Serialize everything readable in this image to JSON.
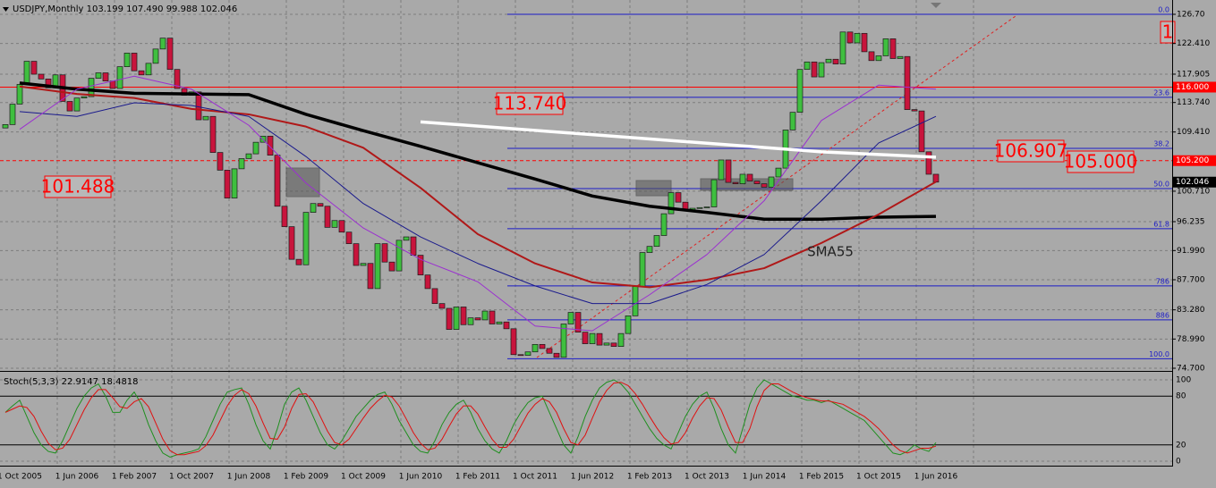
{
  "chart_data": [
    {
      "type": "candlestick",
      "title": "USDJPY,Monthly  103.199 107.490 99.988 102.046",
      "categories": [
        null,
        null,
        "1 Oct 2005",
        null,
        null,
        null,
        null,
        null,
        null,
        null,
        "1 Jun 2006",
        null,
        null,
        null,
        null,
        null,
        null,
        null,
        "1 Feb 2007",
        null,
        null,
        null,
        null,
        null,
        null,
        null,
        "1 Oct 2007",
        null,
        null,
        null,
        null,
        null,
        null,
        null,
        "1 Jun 2008",
        null,
        null,
        null,
        null,
        null,
        null,
        null,
        "1 Feb 2009",
        null,
        null,
        null,
        null,
        null,
        null,
        null,
        "1 Oct 2009",
        null,
        null,
        null,
        null,
        null,
        null,
        null,
        "1 Jun 2010",
        null,
        null,
        null,
        null,
        null,
        null,
        null,
        "1 Feb 2011",
        null,
        null,
        null,
        null,
        null,
        null,
        null,
        "1 Oct 2011",
        null,
        null,
        null,
        null,
        null,
        null,
        null,
        "1 Jun 2012",
        null,
        null,
        null,
        null,
        null,
        null,
        null,
        "1 Feb 2013",
        null,
        null,
        null,
        null,
        null,
        null,
        null,
        "1 Oct 2013",
        null,
        null,
        null,
        null,
        null,
        null,
        null,
        "1 Jun 2014",
        null,
        null,
        null,
        null,
        null,
        null,
        null,
        "1 Feb 2015",
        null,
        null,
        null,
        null,
        null,
        null,
        null,
        "1 Oct 2015",
        null,
        null,
        null,
        null,
        null,
        null,
        null,
        "1 Jun 2016"
      ],
      "open": [
        110.0,
        110.5,
        113.5,
        116.4,
        119.8,
        117.9,
        117.2,
        115.9,
        117.8,
        113.9,
        112.5,
        114.4,
        114.6,
        117.3,
        118.1,
        116.9,
        115.8,
        119.0,
        121.0,
        118.4,
        117.8,
        119.5,
        121.6,
        123.2,
        118.6,
        115.8,
        114.8,
        115.3,
        111.2,
        111.7,
        106.4,
        103.8,
        99.7,
        104.0,
        105.5,
        106.2,
        107.9,
        108.8,
        106.0,
        98.5,
        95.5,
        90.7,
        89.9,
        97.6,
        98.9,
        98.5,
        95.4,
        96.4,
        94.7,
        93.0,
        89.8,
        90.1,
        86.4,
        93.0,
        90.3,
        89.0,
        93.5,
        94.0,
        91.3,
        88.4,
        86.4,
        84.2,
        83.5,
        80.4,
        83.7,
        81.1,
        82.1,
        81.8,
        83.1,
        81.2,
        81.5,
        80.5,
        76.7,
        76.6,
        77.1,
        78.2,
        77.6,
        76.9,
        76.3,
        81.2,
        82.9,
        80.0,
        78.3,
        79.8,
        78.1,
        78.4,
        77.9,
        79.8,
        82.4,
        86.7,
        91.7,
        92.6,
        94.2,
        97.4,
        100.5,
        99.1,
        97.9,
        98.2,
        98.3,
        98.4,
        102.4,
        105.3,
        102.0,
        101.8,
        103.2,
        102.2,
        101.8,
        101.3,
        102.8,
        104.1,
        109.7,
        112.3,
        118.6,
        119.7,
        117.5,
        119.6,
        120.1,
        119.4,
        124.1,
        122.5,
        123.9,
        121.2,
        119.9,
        120.6,
        123.1,
        120.2,
        120.5,
        112.7,
        112.5,
        106.5,
        103.199
      ],
      "close": [
        110.5,
        113.5,
        116.4,
        119.8,
        117.9,
        117.2,
        115.9,
        117.8,
        113.9,
        112.5,
        114.4,
        114.6,
        117.3,
        118.1,
        116.9,
        115.8,
        119.0,
        121.0,
        118.4,
        117.8,
        119.5,
        121.6,
        123.2,
        118.6,
        115.8,
        114.8,
        115.3,
        111.2,
        111.7,
        106.4,
        103.8,
        99.7,
        104.0,
        105.5,
        106.2,
        107.9,
        108.8,
        106.0,
        98.5,
        95.5,
        90.7,
        89.9,
        97.6,
        98.9,
        98.5,
        95.4,
        96.4,
        94.7,
        93.0,
        89.8,
        90.1,
        86.4,
        93.0,
        90.3,
        89.0,
        93.5,
        94.0,
        91.3,
        88.4,
        86.4,
        84.2,
        83.5,
        80.4,
        83.7,
        81.1,
        82.1,
        81.8,
        83.1,
        81.2,
        81.5,
        80.5,
        76.7,
        76.6,
        77.1,
        78.2,
        77.6,
        76.9,
        76.3,
        81.2,
        82.9,
        80.0,
        78.3,
        79.8,
        78.1,
        78.4,
        77.9,
        79.8,
        82.4,
        86.7,
        91.7,
        92.6,
        94.2,
        97.4,
        100.5,
        99.1,
        97.9,
        98.2,
        98.3,
        98.4,
        102.4,
        105.3,
        102.0,
        101.8,
        103.2,
        102.2,
        101.8,
        101.3,
        102.8,
        104.1,
        109.7,
        112.3,
        118.6,
        119.7,
        117.5,
        119.6,
        120.1,
        119.4,
        124.1,
        122.5,
        123.9,
        121.2,
        119.9,
        120.6,
        123.1,
        120.2,
        120.5,
        112.7,
        112.5,
        106.5,
        103.2,
        102.046
      ],
      "up_color": "#3fbf3f",
      "down_color": "#c8143c",
      "ylim": [
        74.7,
        126.7
      ],
      "yticks": [
        {
          "value": 126.7,
          "label": "126.70"
        },
        {
          "value": 122.41,
          "label": "122.410"
        },
        117.905,
        {
          "value": 113.74,
          "label": "113.740"
        },
        {
          "value": 109.41,
          "label": "109.410"
        },
        {
          "value": 100.71,
          "label": "100.710"
        },
        96.235,
        {
          "value": 91.99,
          "label": "91.990"
        },
        {
          "value": 87.7,
          "label": "87.700"
        },
        {
          "value": 83.28,
          "label": "83.280"
        },
        {
          "value": 78.99,
          "label": "78.990"
        },
        {
          "value": 74.7,
          "label": "74.700"
        }
      ],
      "grid": true,
      "series": [
        {
          "color": "#000000",
          "width": 3.5,
          "x": [
            "1 Oct 2005",
            "1 Jun 2006",
            "1 Feb 2007",
            "1 Oct 2007",
            "1 Jun 2008",
            "1 Feb 2009",
            "1 Oct 2009",
            "1 Jun 2010",
            "1 Feb 2011",
            "1 Oct 2011",
            "1 Jun 2012",
            "1 Feb 2013",
            "1 Oct 2013",
            "1 Jun 2014",
            "1 Feb 2015",
            "1 Oct 2015",
            "1 Jun 2016"
          ],
          "values": [
            116.6,
            115.7,
            115.1,
            115.0,
            114.9,
            112.0,
            109.6,
            107.3,
            104.9,
            102.5,
            100.0,
            98.5,
            97.6,
            96.6,
            96.6,
            96.9,
            97.0
          ]
        },
        {
          "color": "#b01818",
          "width": 2,
          "x": [
            "1 Oct 2005",
            "1 Jun 2006",
            "1 Feb 2007",
            "1 Oct 2007",
            "1 Jun 2008",
            "1 Feb 2009",
            "1 Oct 2009",
            "1 Jun 2010",
            "1 Feb 2011",
            "1 Oct 2011",
            "1 Jun 2012",
            "1 Feb 2013",
            "1 Oct 2013",
            "1 Jun 2014",
            "1 Feb 2015",
            "1 Oct 2015",
            "1 Jun 2016"
          ],
          "values": [
            116.1,
            115.0,
            114.4,
            112.8,
            112.0,
            110.2,
            107.1,
            101.2,
            94.4,
            90.1,
            87.3,
            86.6,
            87.7,
            89.4,
            93.1,
            97.3,
            102.1
          ]
        },
        {
          "color": "#1a1a8c",
          "width": 1,
          "x": [
            "1 Oct 2005",
            "1 Jun 2006",
            "1 Feb 2007",
            "1 Oct 2007",
            "1 Jun 2008",
            "1 Feb 2009",
            "1 Oct 2009",
            "1 Jun 2010",
            "1 Feb 2011",
            "1 Oct 2011",
            "1 Jun 2012",
            "1 Feb 2013",
            "1 Oct 2013",
            "1 Jun 2014",
            "1 Feb 2015",
            "1 Oct 2015",
            "1 Jun 2016"
          ],
          "values": [
            112.4,
            111.7,
            113.7,
            113.3,
            111.7,
            105.8,
            98.9,
            94.0,
            90.1,
            86.8,
            84.2,
            84.2,
            87.0,
            91.4,
            99.3,
            107.8,
            111.7
          ]
        },
        {
          "color": "#9b30d0",
          "width": 1,
          "x": [
            "1 Oct 2005",
            "1 Jun 2006",
            "1 Feb 2007",
            "1 Oct 2007",
            "1 Jun 2008",
            "1 Feb 2009",
            "1 Oct 2009",
            "1 Jun 2010",
            "1 Feb 2011",
            "1 Oct 2011",
            "1 Jun 2012",
            "1 Feb 2013",
            "1 Oct 2013",
            "1 Jun 2014",
            "1 Feb 2015",
            "1 Oct 2015",
            "1 Jun 2016"
          ],
          "values": [
            109.8,
            115.7,
            117.6,
            115.7,
            110.4,
            101.9,
            95.3,
            90.7,
            87.4,
            80.9,
            80.2,
            85.5,
            91.4,
            99.3,
            111.1,
            116.3,
            115.7
          ]
        },
        {
          "color": "#ffffff",
          "width": 3.5,
          "x": [
            "1 Jun 2010",
            "1 Feb 2015",
            "1 Jun 2016"
          ],
          "values": [
            110.9,
            106.5,
            105.7
          ]
        }
      ],
      "levels": [
        {
          "value": 126.7,
          "label": "0.0"
        },
        {
          "value": 114.5,
          "label": "23.6"
        },
        {
          "value": 107.0,
          "label": "38.2"
        },
        {
          "value": 101.1,
          "label": "50.0"
        },
        {
          "value": 95.2,
          "label": "61.8"
        },
        {
          "value": 86.8,
          "label": "786"
        },
        {
          "value": 81.8,
          "label": "886"
        },
        {
          "value": 76.1,
          "label": "100.0"
        }
      ],
      "level_color": "#1c1cc8",
      "price_markers": [
        {
          "value": 116.0,
          "label": "116.000",
          "color": "#ff0000",
          "dashed": false
        },
        {
          "value": 105.2,
          "label": "105.200",
          "color": "#ff0000",
          "dashed": true
        },
        {
          "value": 102.046,
          "color": "#000000",
          "dashed": false
        }
      ],
      "annotations": [
        "113.740",
        "101.488",
        "106.907",
        "105.000",
        "1"
      ],
      "text_note": "SMA55"
    },
    {
      "type": "line",
      "title": "Stoch(5,3,3) 22.9147 18.4818",
      "ylim": [
        0,
        100
      ],
      "yticks": [
        0,
        20,
        80,
        100
      ],
      "series": [
        {
          "color": "#1f8f1f",
          "values": [
            60,
            68,
            75,
            55,
            35,
            20,
            12,
            10,
            25,
            45,
            65,
            80,
            90,
            95,
            80,
            60,
            60,
            75,
            85,
            70,
            45,
            25,
            10,
            5,
            8,
            10,
            12,
            15,
            30,
            50,
            70,
            85,
            88,
            90,
            70,
            45,
            25,
            15,
            40,
            70,
            85,
            90,
            75,
            55,
            35,
            20,
            15,
            25,
            40,
            55,
            65,
            75,
            82,
            85,
            70,
            50,
            35,
            20,
            12,
            10,
            25,
            45,
            60,
            70,
            75,
            60,
            40,
            25,
            15,
            10,
            25,
            45,
            60,
            72,
            78,
            80,
            60,
            40,
            20,
            10,
            30,
            55,
            75,
            90,
            97,
            100,
            95,
            85,
            70,
            55,
            40,
            28,
            20,
            15,
            35,
            55,
            70,
            80,
            85,
            65,
            40,
            20,
            10,
            40,
            70,
            90,
            100,
            95,
            90,
            85,
            80,
            78,
            75,
            75,
            72,
            75,
            70,
            65,
            60,
            55,
            50,
            40,
            30,
            20,
            10,
            8,
            12,
            20,
            15,
            12,
            22.9147
          ]
        },
        {
          "color": "#e01010",
          "values": [
            60,
            64,
            68,
            66,
            55,
            37,
            22,
            14,
            16,
            27,
            45,
            63,
            78,
            88,
            88,
            78,
            67,
            65,
            73,
            77,
            67,
            47,
            27,
            13,
            8,
            8,
            10,
            12,
            19,
            32,
            50,
            68,
            81,
            88,
            83,
            68,
            47,
            28,
            27,
            42,
            65,
            82,
            83,
            73,
            55,
            37,
            23,
            20,
            27,
            40,
            53,
            65,
            74,
            81,
            79,
            68,
            52,
            35,
            22,
            14,
            16,
            27,
            43,
            58,
            68,
            68,
            58,
            42,
            27,
            17,
            17,
            27,
            43,
            59,
            70,
            77,
            73,
            60,
            40,
            23,
            20,
            32,
            53,
            73,
            87,
            96,
            97,
            93,
            83,
            70,
            55,
            41,
            29,
            21,
            23,
            35,
            53,
            68,
            78,
            77,
            63,
            42,
            23,
            23,
            40,
            67,
            87,
            95,
            95,
            90,
            85,
            81,
            78,
            76,
            74,
            74,
            72,
            70,
            65,
            60,
            55,
            48,
            40,
            30,
            20,
            13,
            10,
            13,
            16,
            16,
            18.4818
          ]
        }
      ]
    }
  ]
}
